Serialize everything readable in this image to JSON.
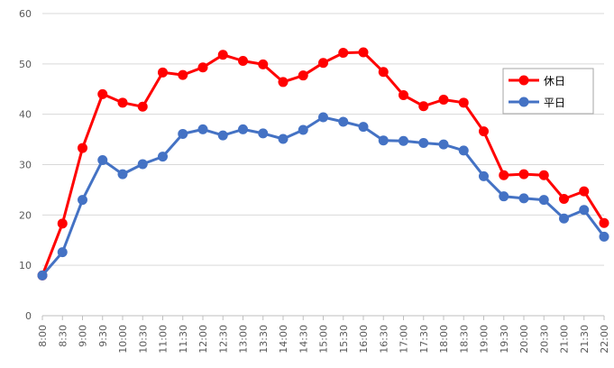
{
  "chart_data": {
    "type": "line",
    "title": "",
    "xlabel": "",
    "ylabel": "",
    "ylim": [
      0,
      60
    ],
    "yticks": [
      0,
      10,
      20,
      30,
      40,
      50,
      60
    ],
    "grid": "horizontal",
    "legend_position": "right",
    "x": [
      "8:00",
      "8:30",
      "9:00",
      "9:30",
      "10:00",
      "10:30",
      "11:00",
      "11:30",
      "12:00",
      "12:30",
      "13:00",
      "13:30",
      "14:00",
      "14:30",
      "15:00",
      "15:30",
      "16:00",
      "16:30",
      "17:00",
      "17:30",
      "18:00",
      "18:30",
      "19:00",
      "19:30",
      "20:00",
      "20:30",
      "21:00",
      "21:30",
      "22:00"
    ],
    "series": [
      {
        "name": "休日",
        "color": "#ff0000",
        "values": [
          8.0,
          18.3,
          33.3,
          44.0,
          42.3,
          41.5,
          48.3,
          47.8,
          49.3,
          51.8,
          50.6,
          49.9,
          46.4,
          47.7,
          50.2,
          52.2,
          52.3,
          48.4,
          43.8,
          41.6,
          42.9,
          42.3,
          36.6,
          27.9,
          28.1,
          27.9,
          23.2,
          24.7,
          18.4
        ]
      },
      {
        "name": "平日",
        "color": "#4472c4",
        "values": [
          8.0,
          12.6,
          23.0,
          30.9,
          28.1,
          30.1,
          31.6,
          36.1,
          37.0,
          35.8,
          37.0,
          36.2,
          35.1,
          36.9,
          39.4,
          38.5,
          37.5,
          34.8,
          34.7,
          34.3,
          34.0,
          32.8,
          27.7,
          23.7,
          23.3,
          23.0,
          19.3,
          21.0,
          15.7
        ]
      }
    ]
  }
}
